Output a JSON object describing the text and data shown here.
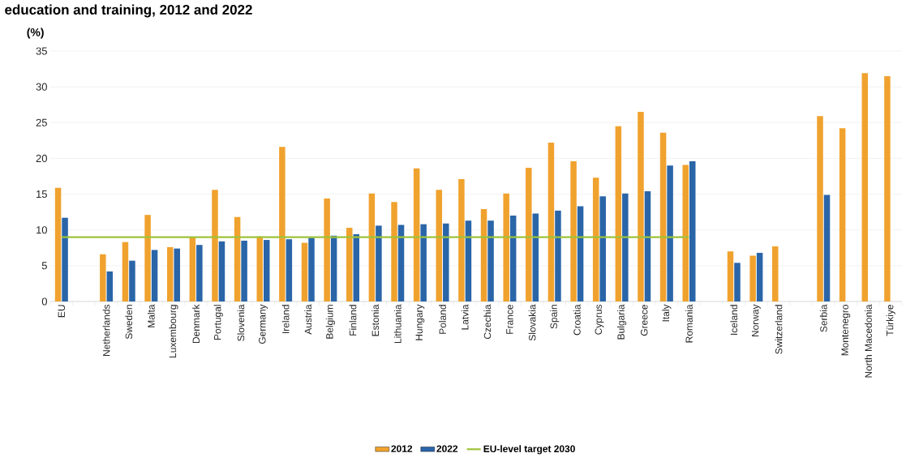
{
  "chart_data": {
    "type": "bar",
    "title": "education and training, 2012 and 2022",
    "ylabel": "(%)",
    "categories": [
      "EU",
      null,
      "Netherlands",
      "Sweden",
      "Malta",
      "Luxembourg",
      "Denmark",
      "Portugal",
      "Slovenia",
      "Germany",
      "Ireland",
      "Austria",
      "Belgium",
      "Finland",
      "Estonia",
      "Lithuania",
      "Hungary",
      "Poland",
      "Latvia",
      "Czechia",
      "France",
      "Slovakia",
      "Spain",
      "Croatia",
      "Cyprus",
      "Bulgaria",
      "Greece",
      "Italy",
      "Romania",
      null,
      "Iceland",
      "Norway",
      "Switzerland",
      null,
      "Serbia",
      "Montenegro",
      "North Macedonia",
      "Türkiye"
    ],
    "series": [
      {
        "name": "2012",
        "color": "#f0a22e",
        "values": [
          15.9,
          null,
          6.6,
          8.3,
          12.1,
          7.6,
          9.0,
          15.6,
          11.8,
          9.1,
          21.6,
          8.2,
          14.4,
          10.3,
          15.1,
          13.9,
          18.6,
          15.6,
          17.1,
          12.9,
          15.1,
          18.7,
          22.2,
          19.6,
          17.3,
          24.5,
          26.5,
          23.6,
          19.1,
          null,
          7.0,
          6.4,
          7.7,
          null,
          25.9,
          24.2,
          31.9,
          31.5
        ]
      },
      {
        "name": "2022",
        "color": "#2a65a8",
        "values": [
          11.7,
          null,
          4.2,
          5.7,
          7.2,
          7.4,
          7.9,
          8.4,
          8.5,
          8.6,
          8.7,
          8.9,
          9.2,
          9.4,
          10.6,
          10.7,
          10.8,
          10.9,
          11.3,
          11.3,
          12.0,
          12.3,
          12.7,
          13.3,
          14.7,
          15.1,
          15.4,
          19.0,
          19.6,
          null,
          5.4,
          6.8,
          null,
          null,
          14.9,
          null,
          null,
          null
        ]
      },
      {
        "name": "EU-level target 2030",
        "type": "line",
        "color": "#9dc33b",
        "values": [
          9,
          9,
          9,
          9,
          9,
          9,
          9,
          9,
          9,
          9,
          9,
          9,
          9,
          9,
          9,
          9,
          9,
          9,
          9,
          9,
          9,
          9,
          9,
          9,
          9,
          9,
          9,
          9,
          9,
          null,
          null,
          null,
          null,
          null,
          null,
          null,
          null,
          null
        ]
      }
    ],
    "ylim": [
      0,
      35
    ],
    "yticks": [
      0,
      5,
      10,
      15,
      20,
      25,
      30,
      35
    ],
    "grid": "y",
    "legend": "bottom"
  }
}
